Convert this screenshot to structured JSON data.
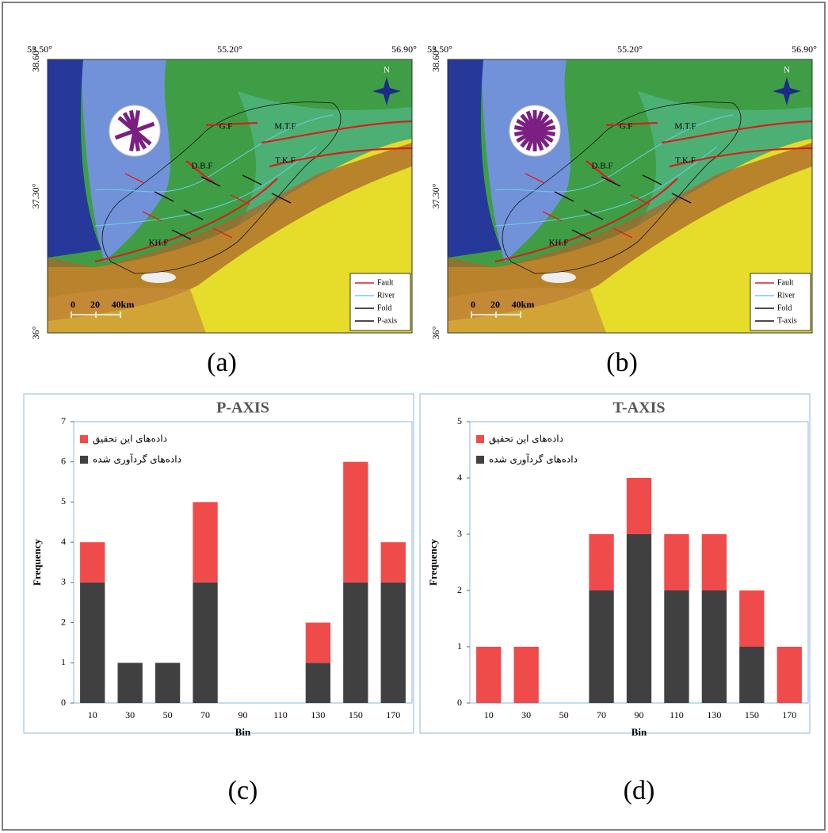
{
  "maps": [
    {
      "panel": "(a)",
      "lon_labels": [
        "53.50°",
        "55.20°",
        "56.90°"
      ],
      "lat_labels": [
        "38.60°",
        "37.30°",
        "36°"
      ],
      "north": "N",
      "faults": [
        "G.F",
        "M.T.F",
        "D.B.F",
        "T.K.F",
        "KH.F"
      ],
      "scale": [
        "0",
        "20",
        "40km"
      ],
      "legend": [
        "Fault",
        "River",
        "Fold",
        "P-axis"
      ]
    },
    {
      "panel": "(b)",
      "lon_labels": [
        "53.50°",
        "55.20°",
        "56.90°"
      ],
      "lat_labels": [
        "38.60°",
        "37.30°",
        "36°"
      ],
      "north": "N",
      "faults": [
        "G.F",
        "M.T.F",
        "D.B.F",
        "T.K.F",
        "KH.F"
      ],
      "scale": [
        "0",
        "20",
        "40km"
      ],
      "legend": [
        "Fault",
        "River",
        "Fold",
        "T-axis"
      ]
    }
  ],
  "chart_data": [
    {
      "type": "bar",
      "stacked": true,
      "title": "P-AXIS",
      "panel": "(c)",
      "x_label": "Bin",
      "y_label": "Frequency",
      "categories": [
        "10",
        "30",
        "50",
        "70",
        "90",
        "110",
        "130",
        "150",
        "170"
      ],
      "series": [
        {
          "name": "داده‌های گردآوری شده",
          "color": "#404040",
          "values": [
            3,
            1,
            1,
            3,
            0,
            0,
            1,
            3,
            3
          ]
        },
        {
          "name": "داده‌های این تحقیق",
          "color": "#ef4b4b",
          "values": [
            1,
            0,
            0,
            2,
            0,
            0,
            1,
            3,
            1
          ]
        }
      ],
      "ylim": [
        0,
        7
      ],
      "yticks": [
        0,
        1,
        2,
        3,
        4,
        5,
        6,
        7
      ],
      "legend": "top-left"
    },
    {
      "type": "bar",
      "stacked": true,
      "title": "T-AXIS",
      "panel": "(d)",
      "x_label": "Bin",
      "y_label": "Frequency",
      "categories": [
        "10",
        "30",
        "50",
        "70",
        "90",
        "110",
        "130",
        "150",
        "170"
      ],
      "series": [
        {
          "name": "داده‌های گردآوری شده",
          "color": "#404040",
          "values": [
            0,
            0,
            0,
            2,
            3,
            2,
            2,
            1,
            0
          ]
        },
        {
          "name": "داده‌های این تحقیق",
          "color": "#ef4b4b",
          "values": [
            1,
            1,
            0,
            1,
            1,
            1,
            1,
            1,
            1
          ]
        }
      ],
      "ylim": [
        0,
        5
      ],
      "yticks": [
        0,
        1,
        2,
        3,
        4,
        5
      ],
      "legend": "top-left"
    }
  ]
}
